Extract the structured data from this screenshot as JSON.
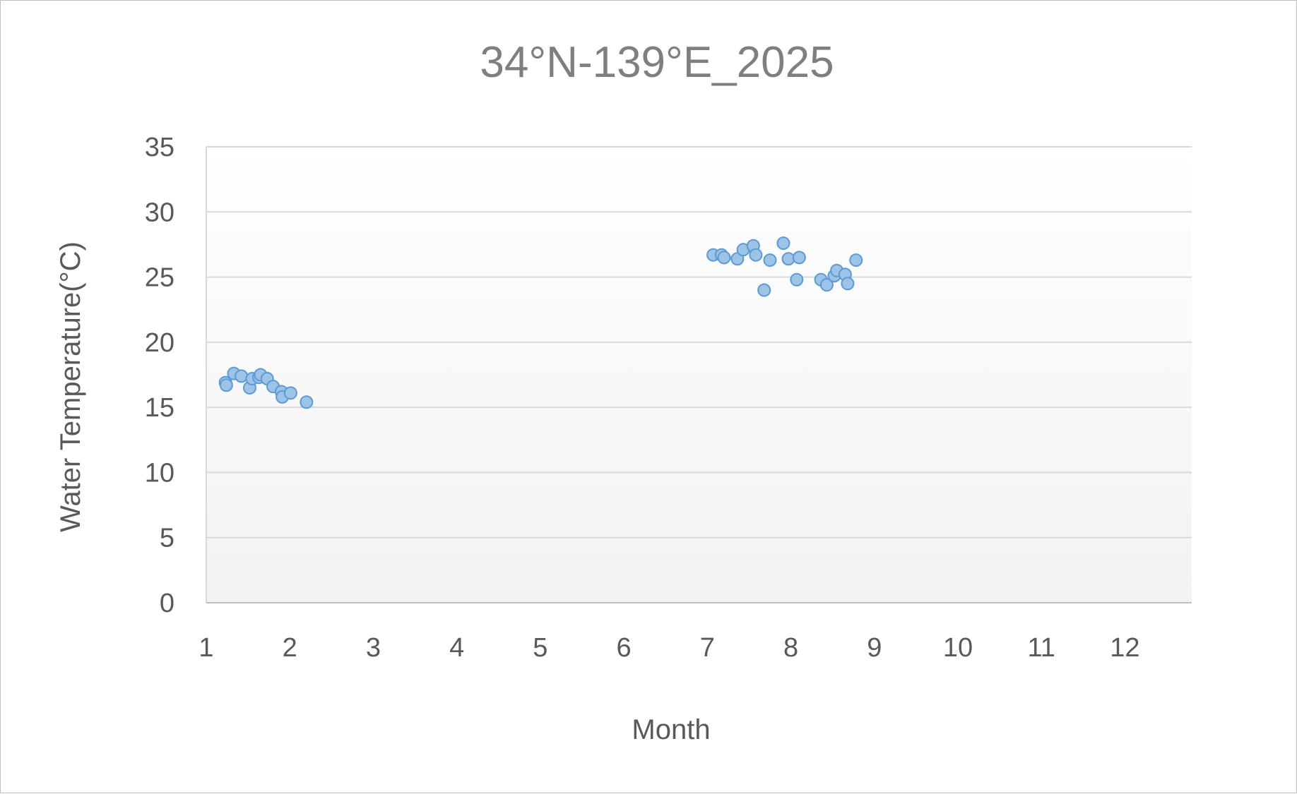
{
  "chart_data": {
    "type": "scatter",
    "title": "34°N-139°E_2025",
    "xlabel": "Month",
    "ylabel": "Water Temperature(°C)",
    "xlim": [
      1,
      12.8
    ],
    "ylim": [
      0,
      35
    ],
    "xticks": [
      "1",
      "2",
      "3",
      "4",
      "5",
      "6",
      "7",
      "8",
      "9",
      "10",
      "11",
      "12"
    ],
    "yticks": [
      "0",
      "5",
      "10",
      "15",
      "20",
      "25",
      "30",
      "35"
    ],
    "grid": true,
    "legend": "none",
    "marker_fill": "#9dc3e6",
    "marker_edge": "#5b9bd5",
    "series": [
      {
        "points": [
          [
            1.23,
            16.9
          ],
          [
            1.24,
            16.7
          ],
          [
            1.33,
            17.6
          ],
          [
            1.42,
            17.4
          ],
          [
            1.52,
            16.5
          ],
          [
            1.55,
            17.2
          ],
          [
            1.63,
            17.3
          ],
          [
            1.65,
            17.5
          ],
          [
            1.73,
            17.2
          ],
          [
            1.8,
            16.6
          ],
          [
            1.9,
            16.2
          ],
          [
            1.91,
            15.8
          ],
          [
            2.01,
            16.1
          ],
          [
            2.2,
            15.4
          ],
          [
            7.07,
            26.7
          ],
          [
            7.17,
            26.7
          ],
          [
            7.2,
            26.5
          ],
          [
            7.36,
            26.4
          ],
          [
            7.43,
            27.1
          ],
          [
            7.55,
            27.4
          ],
          [
            7.58,
            26.7
          ],
          [
            7.68,
            24.0
          ],
          [
            7.75,
            26.3
          ],
          [
            7.91,
            27.6
          ],
          [
            7.97,
            26.4
          ],
          [
            8.07,
            24.8
          ],
          [
            8.1,
            26.5
          ],
          [
            8.36,
            24.8
          ],
          [
            8.43,
            24.4
          ],
          [
            8.52,
            25.1
          ],
          [
            8.55,
            25.5
          ],
          [
            8.65,
            25.2
          ],
          [
            8.68,
            24.5
          ],
          [
            8.78,
            26.3
          ]
        ]
      }
    ]
  }
}
